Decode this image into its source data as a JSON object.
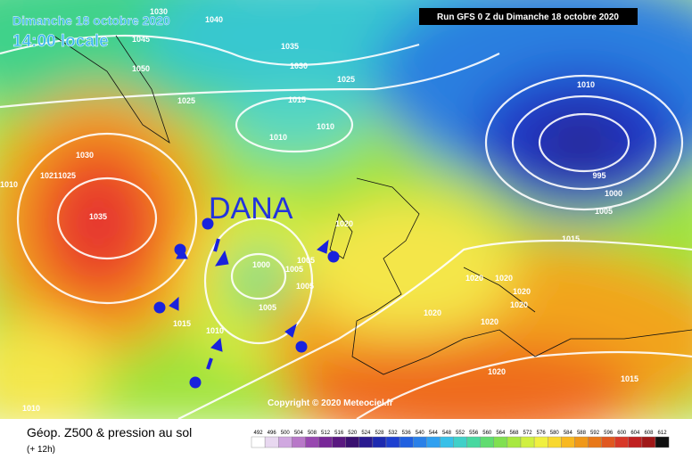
{
  "header": {
    "date": "Dimanche 18 octobre 2020",
    "time": "14:00 locale",
    "run": "Run GFS 0 Z du Dimanche 18 octobre 2020"
  },
  "annotation": "DANA",
  "copyright": "Copyright © 2020 Meteociel.fr",
  "legend": {
    "title": "Géop. Z500 & pression au sol",
    "step": "(+ 12h)",
    "scale": [
      492,
      496,
      500,
      504,
      508,
      512,
      516,
      520,
      524,
      528,
      532,
      536,
      540,
      544,
      548,
      552,
      556,
      560,
      564,
      568,
      572,
      576,
      580,
      584,
      588,
      592,
      596,
      600,
      604,
      608,
      612
    ]
  },
  "isobar_labels": [
    1030,
    1040,
    1045,
    1050,
    1035,
    1030,
    1025,
    1025,
    1015,
    1010,
    1010,
    1030,
    1021,
    1025,
    1010,
    1035,
    1010,
    995,
    1000,
    1005,
    1015,
    1020,
    1000,
    1005,
    1005,
    1005,
    1005,
    1015,
    1010,
    1020,
    1020,
    1020,
    1020,
    1020,
    1020,
    1020,
    1015,
    1010
  ]
}
